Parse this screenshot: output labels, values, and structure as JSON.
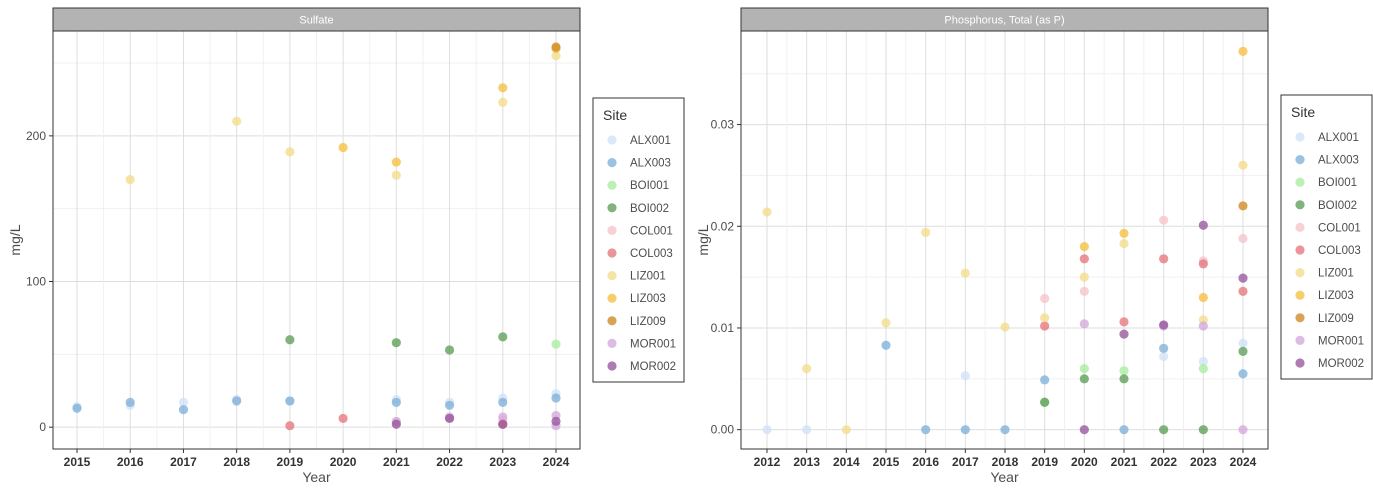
{
  "legend_title": "Site",
  "sites": [
    {
      "name": "ALX001",
      "color": "#cfe2f7"
    },
    {
      "name": "ALX003",
      "color": "#7fb1d8"
    },
    {
      "name": "BOI001",
      "color": "#a8eda0"
    },
    {
      "name": "BOI002",
      "color": "#5e9e57"
    },
    {
      "name": "COL001",
      "color": "#f6c4cc"
    },
    {
      "name": "COL003",
      "color": "#e5767c"
    },
    {
      "name": "LIZ001",
      "color": "#f3dd8c"
    },
    {
      "name": "LIZ003",
      "color": "#f5c040"
    },
    {
      "name": "LIZ009",
      "color": "#cf8923"
    },
    {
      "name": "MOR001",
      "color": "#d2a8dc"
    },
    {
      "name": "MOR002",
      "color": "#97569c"
    }
  ],
  "chart_data": [
    {
      "type": "scatter",
      "title": "Sulfate",
      "xlabel": "Year",
      "ylabel": "mg/L",
      "x": [
        2015,
        2016,
        2017,
        2018,
        2019,
        2020,
        2021,
        2022,
        2023,
        2024
      ],
      "x_ticks": [
        "2015",
        "2016",
        "2017",
        "2018",
        "2019",
        "2020",
        "2021",
        "2022",
        "2023",
        "2024"
      ],
      "ylim": [
        -15,
        272
      ],
      "y_ticks": [
        0,
        100,
        200
      ],
      "y_tick_labels": [
        "0",
        "100",
        "200"
      ],
      "grid": true,
      "series": [
        {
          "name": "ALX001",
          "points": [
            [
              2015,
              14
            ],
            [
              2016,
              15
            ],
            [
              2017,
              17
            ],
            [
              2018,
              19
            ],
            [
              2019,
              18
            ],
            [
              2021,
              19
            ],
            [
              2022,
              17
            ],
            [
              2023,
              20
            ],
            [
              2024,
              23
            ]
          ]
        },
        {
          "name": "ALX003",
          "points": [
            [
              2015,
              13
            ],
            [
              2016,
              17
            ],
            [
              2017,
              12
            ],
            [
              2018,
              18
            ],
            [
              2019,
              18
            ],
            [
              2021,
              17
            ],
            [
              2022,
              15
            ],
            [
              2023,
              17
            ],
            [
              2024,
              20
            ]
          ]
        },
        {
          "name": "BOI001",
          "points": [
            [
              2024,
              57
            ]
          ]
        },
        {
          "name": "BOI002",
          "points": [
            [
              2019,
              60
            ],
            [
              2021,
              58
            ],
            [
              2022,
              53
            ],
            [
              2023,
              62
            ]
          ]
        },
        {
          "name": "COL001",
          "points": [
            [
              2021,
              3
            ],
            [
              2022,
              6
            ],
            [
              2023,
              5
            ]
          ]
        },
        {
          "name": "COL003",
          "points": [
            [
              2019,
              1
            ],
            [
              2020,
              6
            ],
            [
              2023,
              2
            ]
          ]
        },
        {
          "name": "LIZ001",
          "points": [
            [
              2016,
              170
            ],
            [
              2018,
              210
            ],
            [
              2019,
              189
            ],
            [
              2021,
              173
            ],
            [
              2023,
              223
            ],
            [
              2024,
              255
            ]
          ]
        },
        {
          "name": "LIZ003",
          "points": [
            [
              2020,
              192
            ],
            [
              2021,
              182
            ],
            [
              2023,
              233
            ],
            [
              2024,
              260
            ]
          ]
        },
        {
          "name": "LIZ009",
          "points": [
            [
              2024,
              261
            ]
          ]
        },
        {
          "name": "MOR001",
          "points": [
            [
              2021,
              4
            ],
            [
              2022,
              7
            ],
            [
              2023,
              7
            ],
            [
              2024,
              8
            ],
            [
              2024,
              1
            ]
          ]
        },
        {
          "name": "MOR002",
          "points": [
            [
              2021,
              2
            ],
            [
              2022,
              6
            ],
            [
              2023,
              2
            ],
            [
              2024,
              4
            ]
          ]
        }
      ]
    },
    {
      "type": "scatter",
      "title": "Phosphorus, Total (as P)",
      "xlabel": "Year",
      "ylabel": "mg/L",
      "x": [
        2012,
        2013,
        2014,
        2015,
        2016,
        2017,
        2018,
        2019,
        2020,
        2021,
        2022,
        2023,
        2024
      ],
      "x_ticks": [
        "2012",
        "2013",
        "2014",
        "2015",
        "2016",
        "2017",
        "2018",
        "2019",
        "2020",
        "2021",
        "2022",
        "2023",
        "2024"
      ],
      "ylim": [
        -0.0019,
        0.0392
      ],
      "y_ticks": [
        0,
        0.01,
        0.02,
        0.03
      ],
      "y_tick_labels": [
        "0.00",
        "0.01",
        "0.02",
        "0.03"
      ],
      "grid": true,
      "series": [
        {
          "name": "ALX001",
          "points": [
            [
              2012,
              0
            ],
            [
              2013,
              0
            ],
            [
              2017,
              0.0053
            ],
            [
              2022,
              0.0072
            ],
            [
              2023,
              0.0067
            ],
            [
              2024,
              0.0085
            ]
          ]
        },
        {
          "name": "ALX003",
          "points": [
            [
              2015,
              0.0083
            ],
            [
              2016,
              0
            ],
            [
              2017,
              0
            ],
            [
              2018,
              0
            ],
            [
              2019,
              0.0049
            ],
            [
              2021,
              0
            ],
            [
              2022,
              0.008
            ],
            [
              2024,
              0.0055
            ]
          ]
        },
        {
          "name": "BOI001",
          "points": [
            [
              2019,
              0.0027
            ],
            [
              2020,
              0.006
            ],
            [
              2021,
              0.0058
            ],
            [
              2023,
              0.006
            ]
          ]
        },
        {
          "name": "BOI002",
          "points": [
            [
              2019,
              0.0027
            ],
            [
              2020,
              0.005
            ],
            [
              2021,
              0.005
            ],
            [
              2022,
              0
            ],
            [
              2023,
              0
            ],
            [
              2024,
              0.0077
            ]
          ]
        },
        {
          "name": "COL001",
          "points": [
            [
              2019,
              0.0129
            ],
            [
              2020,
              0.0136
            ],
            [
              2022,
              0.0206
            ],
            [
              2023,
              0.0166
            ],
            [
              2024,
              0.0188
            ]
          ]
        },
        {
          "name": "COL003",
          "points": [
            [
              2019,
              0.0102
            ],
            [
              2020,
              0.0168
            ],
            [
              2021,
              0.0106
            ],
            [
              2022,
              0.0168
            ],
            [
              2023,
              0.0163
            ],
            [
              2024,
              0.0136
            ]
          ]
        },
        {
          "name": "LIZ001",
          "points": [
            [
              2012,
              0.0214
            ],
            [
              2013,
              0.006
            ],
            [
              2014,
              0
            ],
            [
              2015,
              0.0105
            ],
            [
              2016,
              0.0194
            ],
            [
              2017,
              0.0154
            ],
            [
              2018,
              0.0101
            ],
            [
              2019,
              0.011
            ],
            [
              2020,
              0.015
            ],
            [
              2021,
              0.0183
            ],
            [
              2023,
              0.0108
            ],
            [
              2024,
              0.026
            ]
          ]
        },
        {
          "name": "LIZ003",
          "points": [
            [
              2020,
              0.018
            ],
            [
              2021,
              0.0193
            ],
            [
              2023,
              0.013
            ],
            [
              2024,
              0.0372
            ]
          ]
        },
        {
          "name": "LIZ009",
          "points": [
            [
              2024,
              0.022
            ]
          ]
        },
        {
          "name": "MOR001",
          "points": [
            [
              2020,
              0.0104
            ],
            [
              2022,
              0.0102
            ],
            [
              2023,
              0.0102
            ],
            [
              2024,
              0
            ]
          ]
        },
        {
          "name": "MOR002",
          "points": [
            [
              2020,
              0
            ],
            [
              2021,
              0.0094
            ],
            [
              2022,
              0.0103
            ],
            [
              2023,
              0.0201
            ],
            [
              2024,
              0.0149
            ]
          ]
        }
      ]
    }
  ]
}
